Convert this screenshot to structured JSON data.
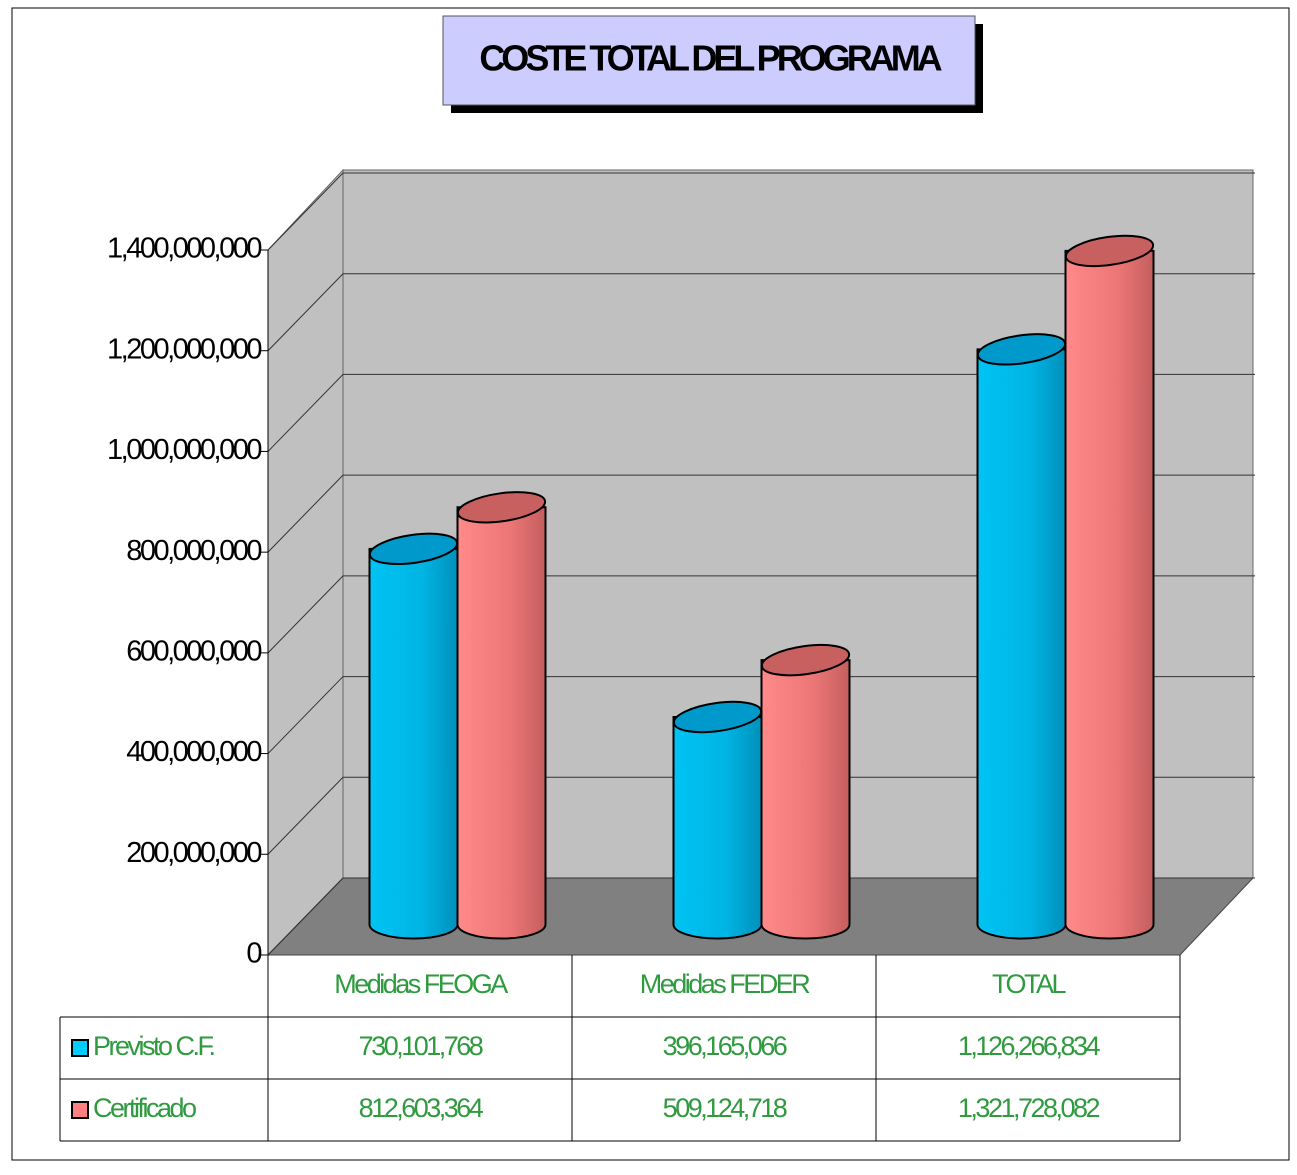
{
  "chart_data": {
    "type": "bar3d",
    "title": "COSTE TOTAL DEL PROGRAMA",
    "categories": [
      "Medidas FEOGA",
      "Medidas FEDER",
      "TOTAL"
    ],
    "series": [
      {
        "name": "Previsto C.F.",
        "color": "#00ccff",
        "values": [
          730101768,
          396165066,
          1126266834
        ],
        "value_labels": [
          "730,101,768",
          "396,165,066",
          "1,126,266,834"
        ]
      },
      {
        "name": "Certificado",
        "color": "#ff8080",
        "values": [
          812603364,
          509124718,
          1321728082
        ],
        "value_labels": [
          "812,603,364",
          "509,124,718",
          "1,321,728,082"
        ]
      }
    ],
    "ylim": [
      0,
      1400000000
    ],
    "yticks": [
      0,
      {
        "value": 200000000,
        "label": "200,000,000"
      },
      {
        "value": 400000000,
        "label": "400,000,000"
      },
      {
        "value": 600000000,
        "label": "600,000,000"
      },
      {
        "value": 800000000,
        "label": "800,000,000"
      },
      {
        "value": 1000000000,
        "label": "1,000,000,000"
      },
      {
        "value": 1200000000,
        "label": "1,200,000,000"
      },
      {
        "value": 1400000000,
        "label": "1,400,000,000"
      }
    ],
    "grid": true
  }
}
